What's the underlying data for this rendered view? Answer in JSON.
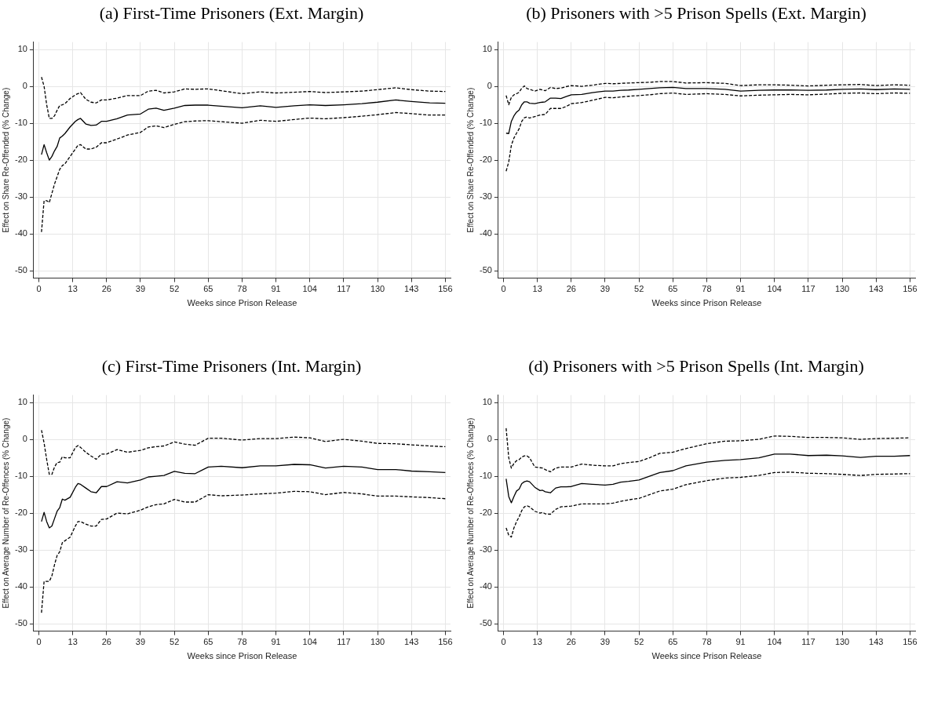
{
  "chart_data": [
    {
      "type": "line",
      "title": "(a) First-Time Prisoners (Ext. Margin)",
      "xlabel": "Weeks since Prison Release",
      "ylabel": "Effect on Share Re-Offended (% Change)",
      "xlim": [
        -2,
        158
      ],
      "ylim": [
        -52,
        12
      ],
      "xticks": [
        0,
        13,
        26,
        39,
        52,
        65,
        78,
        91,
        104,
        117,
        130,
        143,
        156
      ],
      "yticks": [
        -50,
        -40,
        -30,
        -20,
        -10,
        0,
        10
      ],
      "grid": true,
      "legend": false,
      "marker": "none",
      "x": [
        1,
        2,
        3,
        4,
        5,
        6,
        7,
        8,
        9,
        10,
        12,
        14,
        15,
        16,
        18,
        20,
        22,
        24,
        26,
        30,
        34,
        39,
        42,
        45,
        48,
        52,
        56,
        60,
        65,
        70,
        78,
        85,
        91,
        98,
        104,
        110,
        117,
        124,
        130,
        137,
        143,
        150,
        156
      ],
      "series": [
        {
          "color": "#000000",
          "line_style": "solid",
          "values": [
            -18.5,
            -15.8,
            -18,
            -20,
            -19,
            -17.5,
            -16.3,
            -14,
            -13.5,
            -12.8,
            -11,
            -9.5,
            -9,
            -8.7,
            -10.2,
            -10.6,
            -10.5,
            -9.5,
            -9.5,
            -8.8,
            -7.8,
            -7.5,
            -6.2,
            -5.9,
            -6.5,
            -5.9,
            -5.2,
            -5.1,
            -5.1,
            -5.4,
            -5.8,
            -5.3,
            -5.7,
            -5.3,
            -5,
            -5.2,
            -5,
            -4.7,
            -4.3,
            -3.7,
            -4.1,
            -4.5,
            -4.6
          ]
        },
        {
          "color": "#000000",
          "line_style": "dashed",
          "values": [
            2.5,
            0,
            -5,
            -8.7,
            -8.7,
            -8,
            -6.5,
            -5.2,
            -5,
            -4.7,
            -3.3,
            -2.3,
            -2,
            -1.7,
            -3.5,
            -4.3,
            -4.5,
            -3.7,
            -3.7,
            -3.2,
            -2.5,
            -2.5,
            -1.3,
            -1.1,
            -1.8,
            -1.5,
            -0.7,
            -0.8,
            -0.7,
            -1.2,
            -2,
            -1.5,
            -1.8,
            -1.6,
            -1.4,
            -1.7,
            -1.5,
            -1.3,
            -0.9,
            -0.4,
            -0.9,
            -1.3,
            -1.4
          ]
        },
        {
          "color": "#000000",
          "line_style": "dashed",
          "values": [
            -39.5,
            -31,
            -31,
            -31.5,
            -29,
            -26.5,
            -24.5,
            -22.5,
            -21.5,
            -21,
            -19,
            -17,
            -16,
            -15.8,
            -17,
            -17,
            -16.5,
            -15.3,
            -15.3,
            -14.3,
            -13.2,
            -12.5,
            -11,
            -10.7,
            -11.2,
            -10.3,
            -9.6,
            -9.4,
            -9.3,
            -9.6,
            -10,
            -9.2,
            -9.5,
            -9,
            -8.6,
            -8.8,
            -8.5,
            -8.1,
            -7.7,
            -7.1,
            -7.4,
            -7.8,
            -7.8
          ]
        }
      ]
    },
    {
      "type": "line",
      "title": "(b) Prisoners with >5 Prison Spells (Ext. Margin)",
      "xlabel": "Weeks since Prison Release",
      "ylabel": "Effect on Share Re-Offended (% Change)",
      "xlim": [
        -2,
        158
      ],
      "ylim": [
        -52,
        12
      ],
      "xticks": [
        0,
        13,
        26,
        39,
        52,
        65,
        78,
        91,
        104,
        117,
        130,
        143,
        156
      ],
      "yticks": [
        -50,
        -40,
        -30,
        -20,
        -10,
        0,
        10
      ],
      "grid": true,
      "legend": false,
      "marker": "none",
      "x": [
        1,
        2,
        3,
        4,
        5,
        6,
        7,
        8,
        9,
        10,
        12,
        14,
        15,
        16,
        18,
        20,
        22,
        24,
        26,
        30,
        34,
        39,
        42,
        45,
        48,
        52,
        56,
        60,
        65,
        70,
        78,
        85,
        91,
        98,
        104,
        110,
        117,
        124,
        130,
        137,
        143,
        150,
        156
      ],
      "series": [
        {
          "color": "#000000",
          "line_style": "solid",
          "values": [
            -12.7,
            -12.8,
            -9.5,
            -8,
            -7,
            -6.4,
            -5,
            -4.2,
            -4.2,
            -4.6,
            -4.7,
            -4.4,
            -4.3,
            -4.2,
            -3.2,
            -3.2,
            -3.3,
            -2.8,
            -2.3,
            -2.2,
            -1.7,
            -1.3,
            -1.3,
            -1.1,
            -1,
            -0.8,
            -0.6,
            -0.4,
            -0.3,
            -0.6,
            -0.6,
            -0.8,
            -1.3,
            -1.1,
            -1,
            -1,
            -1.1,
            -1,
            -0.8,
            -0.7,
            -0.9,
            -0.7,
            -0.8
          ]
        },
        {
          "color": "#000000",
          "line_style": "dashed",
          "values": [
            -2.5,
            -5,
            -3,
            -2.3,
            -2,
            -1.6,
            -0.5,
            0.1,
            -0.6,
            -0.8,
            -1.3,
            -0.8,
            -1,
            -1.2,
            -0.3,
            -0.6,
            -0.5,
            -0.1,
            0.2,
            0,
            0.3,
            0.8,
            0.7,
            0.8,
            0.9,
            1,
            1.1,
            1.3,
            1.3,
            0.9,
            1,
            0.8,
            0.2,
            0.4,
            0.4,
            0.3,
            0.1,
            0.3,
            0.4,
            0.5,
            0.2,
            0.4,
            0.3
          ]
        },
        {
          "color": "#000000",
          "line_style": "dashed",
          "values": [
            -23,
            -20.5,
            -16,
            -14,
            -12.7,
            -11.5,
            -9.5,
            -8.5,
            -8.3,
            -8.6,
            -8.2,
            -7.8,
            -7.7,
            -7.6,
            -6,
            -6,
            -6,
            -5.5,
            -4.7,
            -4.4,
            -3.8,
            -3,
            -3.1,
            -2.9,
            -2.7,
            -2.5,
            -2.3,
            -2,
            -1.8,
            -2.2,
            -2,
            -2.2,
            -2.6,
            -2.4,
            -2.3,
            -2.2,
            -2.3,
            -2.1,
            -1.9,
            -1.8,
            -2,
            -1.8,
            -1.9
          ]
        }
      ]
    },
    {
      "type": "line",
      "title": "(c) First-Time Prisoners (Int. Margin)",
      "xlabel": "Weeks since Prison Release",
      "ylabel": "Effect on Average Number of Re-Offences (% Change)",
      "xlim": [
        -2,
        158
      ],
      "ylim": [
        -52,
        12
      ],
      "xticks": [
        0,
        13,
        26,
        39,
        52,
        65,
        78,
        91,
        104,
        117,
        130,
        143,
        156
      ],
      "yticks": [
        -50,
        -40,
        -30,
        -20,
        -10,
        0,
        10
      ],
      "grid": true,
      "legend": false,
      "marker": "none",
      "x": [
        1,
        2,
        3,
        4,
        5,
        6,
        7,
        8,
        9,
        10,
        12,
        14,
        15,
        16,
        18,
        20,
        22,
        24,
        26,
        30,
        34,
        39,
        42,
        45,
        48,
        52,
        56,
        60,
        65,
        70,
        78,
        85,
        91,
        98,
        104,
        110,
        117,
        124,
        130,
        137,
        143,
        150,
        156
      ],
      "series": [
        {
          "color": "#000000",
          "line_style": "solid",
          "values": [
            -22.3,
            -19.8,
            -22.3,
            -24,
            -23.5,
            -21.5,
            -19.5,
            -18.5,
            -16.2,
            -16.5,
            -15.7,
            -13,
            -12,
            -12.2,
            -13.2,
            -14.2,
            -14.5,
            -12.8,
            -12.8,
            -11.5,
            -11.8,
            -11,
            -10.2,
            -10,
            -9.8,
            -8.7,
            -9.2,
            -9.3,
            -7.5,
            -7.3,
            -7.7,
            -7.2,
            -7.2,
            -6.8,
            -6.9,
            -7.8,
            -7.3,
            -7.5,
            -8.2,
            -8.2,
            -8.6,
            -8.8,
            -9
          ]
        },
        {
          "color": "#000000",
          "line_style": "dashed",
          "values": [
            2.5,
            -1,
            -5.5,
            -9.5,
            -9.5,
            -7.5,
            -6.3,
            -6.2,
            -4.7,
            -5,
            -5,
            -2.2,
            -1.7,
            -2.2,
            -3.5,
            -4.5,
            -5.4,
            -4,
            -4,
            -2.8,
            -3.5,
            -3,
            -2.3,
            -2,
            -1.8,
            -0.7,
            -1.3,
            -1.6,
            0.3,
            0.3,
            -0.2,
            0.2,
            0.2,
            0.6,
            0.4,
            -0.6,
            0,
            -0.5,
            -1.1,
            -1.2,
            -1.5,
            -1.8,
            -2
          ]
        },
        {
          "color": "#000000",
          "line_style": "dashed",
          "values": [
            -47,
            -38.5,
            -38.5,
            -38.5,
            -37,
            -34,
            -31.5,
            -30.5,
            -28,
            -27.5,
            -26.5,
            -23.5,
            -22.3,
            -22.3,
            -23,
            -23.5,
            -23.5,
            -21.7,
            -21.6,
            -20,
            -20.2,
            -19.2,
            -18.3,
            -17.7,
            -17.5,
            -16.3,
            -17,
            -17,
            -15,
            -15.3,
            -15.1,
            -14.8,
            -14.6,
            -14.1,
            -14.2,
            -15,
            -14.4,
            -14.8,
            -15.4,
            -15.4,
            -15.6,
            -15.8,
            -16.1
          ]
        }
      ]
    },
    {
      "type": "line",
      "title": "(d) Prisoners with >5 Prison Spells (Int. Margin)",
      "xlabel": "Weeks since Prison Release",
      "ylabel": "Effect on Average Number of Re-Offences (% Change)",
      "xlim": [
        -2,
        158
      ],
      "ylim": [
        -52,
        12
      ],
      "xticks": [
        0,
        13,
        26,
        39,
        52,
        65,
        78,
        91,
        104,
        117,
        130,
        143,
        156
      ],
      "yticks": [
        -50,
        -40,
        -30,
        -20,
        -10,
        0,
        10
      ],
      "grid": true,
      "legend": false,
      "marker": "none",
      "x": [
        1,
        2,
        3,
        4,
        5,
        6,
        7,
        8,
        9,
        10,
        12,
        14,
        15,
        16,
        18,
        20,
        22,
        24,
        26,
        30,
        34,
        39,
        42,
        45,
        48,
        52,
        56,
        60,
        65,
        70,
        78,
        85,
        91,
        98,
        104,
        110,
        117,
        124,
        130,
        137,
        143,
        150,
        156
      ],
      "series": [
        {
          "color": "#000000",
          "line_style": "solid",
          "values": [
            -10.7,
            -15.5,
            -17.2,
            -15.5,
            -14,
            -13.5,
            -12,
            -11.5,
            -11.3,
            -11.5,
            -13,
            -13.9,
            -13.8,
            -14.2,
            -14.5,
            -13.2,
            -12.9,
            -12.9,
            -12.8,
            -12,
            -12.2,
            -12.4,
            -12.2,
            -11.6,
            -11.4,
            -11,
            -10,
            -9,
            -8.5,
            -7.2,
            -6.2,
            -5.7,
            -5.5,
            -5,
            -4,
            -4,
            -4.4,
            -4.3,
            -4.5,
            -4.9,
            -4.6,
            -4.6,
            -4.4
          ]
        },
        {
          "color": "#000000",
          "line_style": "dashed",
          "values": [
            3,
            -5,
            -7.8,
            -6.5,
            -5.8,
            -5.5,
            -4.8,
            -4.5,
            -4.5,
            -5,
            -7.5,
            -7.7,
            -7.8,
            -8.2,
            -8.8,
            -7.8,
            -7.5,
            -7.5,
            -7.5,
            -6.7,
            -7,
            -7.2,
            -7.2,
            -6.6,
            -6.3,
            -6,
            -5,
            -3.8,
            -3.5,
            -2.5,
            -1.2,
            -0.5,
            -0.4,
            0,
            0.9,
            0.8,
            0.5,
            0.5,
            0.4,
            0,
            0.2,
            0.3,
            0.4
          ]
        },
        {
          "color": "#000000",
          "line_style": "dashed",
          "values": [
            -24,
            -26,
            -26.5,
            -24,
            -22.3,
            -21,
            -19.3,
            -18.3,
            -18,
            -18.3,
            -19.5,
            -20,
            -19.8,
            -20.2,
            -20.3,
            -19,
            -18.3,
            -18.2,
            -18.1,
            -17.5,
            -17.5,
            -17.5,
            -17.3,
            -16.8,
            -16.4,
            -16,
            -15,
            -14,
            -13.5,
            -12.3,
            -11.2,
            -10.5,
            -10.3,
            -9.8,
            -9,
            -8.9,
            -9.2,
            -9.3,
            -9.5,
            -9.8,
            -9.5,
            -9.4,
            -9.3
          ]
        }
      ]
    }
  ]
}
